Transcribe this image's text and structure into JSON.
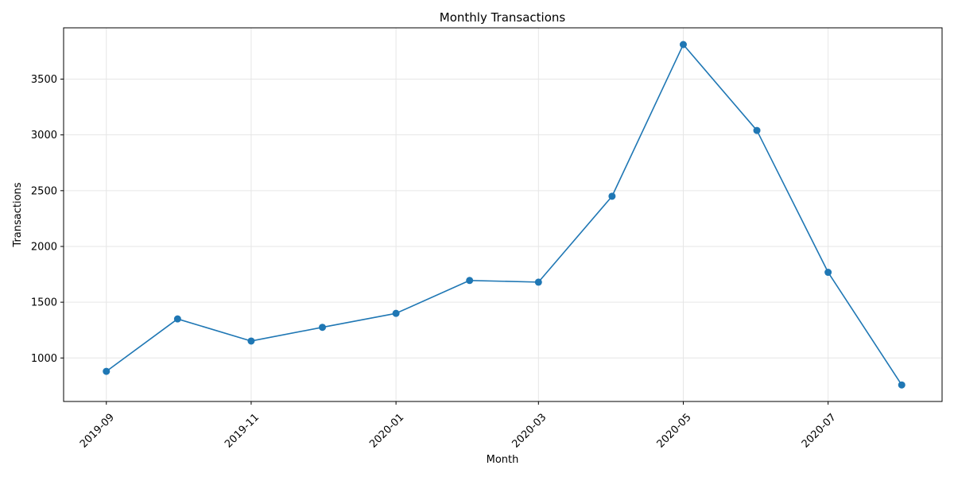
{
  "chart_data": {
    "type": "line",
    "title": "Monthly Transactions",
    "xlabel": "Month",
    "ylabel": "Transactions",
    "grid": true,
    "legend": "none",
    "x_tick_labels": [
      "2019-09",
      "2019-11",
      "2020-01",
      "2020-03",
      "2020-05",
      "2020-07"
    ],
    "x_tick_dates": [
      "2019-09",
      "2019-11",
      "2020-01",
      "2020-03",
      "2020-05",
      "2020-07"
    ],
    "y_ticks": [
      1000,
      1500,
      2000,
      2500,
      3000,
      3500
    ],
    "ylim": [
      610,
      3960
    ],
    "xlim": [
      "2019-08-14",
      "2020-08-18"
    ],
    "series": [
      {
        "color": "#1f77b4",
        "marker": "circle",
        "points": [
          {
            "x": "2019-09",
            "y": 880
          },
          {
            "x": "2019-10",
            "y": 1350
          },
          {
            "x": "2019-11",
            "y": 1152
          },
          {
            "x": "2019-12",
            "y": 1275
          },
          {
            "x": "2020-01",
            "y": 1400
          },
          {
            "x": "2020-02",
            "y": 1695
          },
          {
            "x": "2020-03",
            "y": 1680
          },
          {
            "x": "2020-04",
            "y": 2450
          },
          {
            "x": "2020-05",
            "y": 3810
          },
          {
            "x": "2020-06",
            "y": 3040
          },
          {
            "x": "2020-07",
            "y": 1768
          },
          {
            "x": "2020-08",
            "y": 758
          }
        ]
      }
    ]
  }
}
